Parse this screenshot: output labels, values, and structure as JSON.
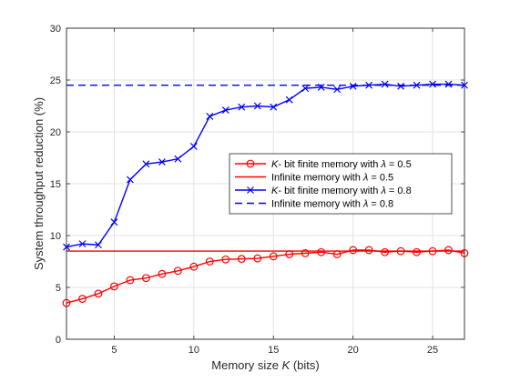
{
  "chart_data": {
    "type": "line",
    "xlabel_parts": [
      "Memory size ",
      "K",
      " (bits)"
    ],
    "ylabel": "System throughput reduction (%)",
    "xlim": [
      2,
      27
    ],
    "ylim": [
      0,
      30
    ],
    "xticks": [
      5,
      10,
      15,
      20,
      25
    ],
    "yticks": [
      0,
      5,
      10,
      15,
      20,
      25,
      30
    ],
    "grid": true,
    "legend_position": "center-right",
    "x": [
      2,
      3,
      4,
      5,
      6,
      7,
      8,
      9,
      10,
      11,
      12,
      13,
      14,
      15,
      16,
      17,
      18,
      19,
      20,
      21,
      22,
      23,
      24,
      25,
      26,
      27
    ],
    "series": [
      {
        "name": "K- bit finite memory with λ = 0.5",
        "legend_parts": [
          "K",
          "- bit finite memory with ",
          "λ",
          " = 0.5"
        ],
        "color": "#ff0000",
        "style": "solid",
        "marker": "circle",
        "values": [
          3.5,
          3.9,
          4.4,
          5.1,
          5.7,
          5.9,
          6.3,
          6.6,
          7.0,
          7.5,
          7.7,
          7.75,
          7.8,
          8.0,
          8.2,
          8.3,
          8.4,
          8.2,
          8.6,
          8.6,
          8.4,
          8.5,
          8.4,
          8.5,
          8.6,
          8.3
        ]
      },
      {
        "name": "Infinite memory with λ = 0.5",
        "legend_parts": [
          "",
          "Infinite memory with ",
          "λ",
          " = 0.5"
        ],
        "color": "#ff0000",
        "style": "solid",
        "marker": "none",
        "constant": 8.5
      },
      {
        "name": "K- bit finite memory with λ = 0.8",
        "legend_parts": [
          "K",
          "- bit finite memory with ",
          "λ",
          " = 0.8"
        ],
        "color": "#0000ff",
        "style": "solid",
        "marker": "x",
        "values": [
          8.9,
          9.2,
          9.1,
          11.3,
          15.4,
          16.9,
          17.1,
          17.4,
          18.6,
          21.5,
          22.1,
          22.4,
          22.5,
          22.4,
          23.1,
          24.2,
          24.3,
          24.1,
          24.4,
          24.5,
          24.6,
          24.4,
          24.5,
          24.6,
          24.6,
          24.5
        ]
      },
      {
        "name": "Infinite memory with λ = 0.8",
        "legend_parts": [
          "",
          "Infinite memory with ",
          "λ",
          " = 0.8"
        ],
        "color": "#0000ff",
        "style": "dashed",
        "marker": "none",
        "constant": 24.5
      }
    ]
  }
}
